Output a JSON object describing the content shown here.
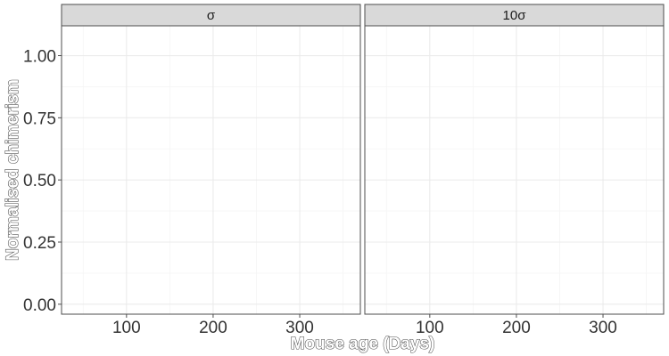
{
  "chart_data": {
    "type": "scatter",
    "title": "",
    "xlabel": "Mouse age (Days)",
    "ylabel": "Normalised chimerism",
    "xlim": [
      25,
      370
    ],
    "ylim": [
      -0.04,
      1.12
    ],
    "x_ticks": [
      100,
      200,
      300
    ],
    "x_tick_labels": [
      "100",
      "200",
      "300"
    ],
    "y_ticks": [
      0,
      0.25,
      0.5,
      0.75,
      1
    ],
    "y_tick_labels": [
      "0.00",
      "0.25",
      "0.50",
      "0.75",
      "1.00"
    ],
    "x_minor_ticks": [
      50,
      150,
      250,
      350
    ],
    "y_minor_ticks": [
      0.125,
      0.375,
      0.625,
      0.875,
      1.125
    ],
    "grid": true,
    "facets": [
      {
        "label": "σ",
        "series": []
      },
      {
        "label": "10σ",
        "series": []
      }
    ],
    "colors": {
      "grid_major": "#ebebeb",
      "grid_minor": "#f5f5f5",
      "panel_border": "#4d4d4d",
      "strip_fill": "#d9d9d9",
      "tick_text": "#333333"
    }
  }
}
